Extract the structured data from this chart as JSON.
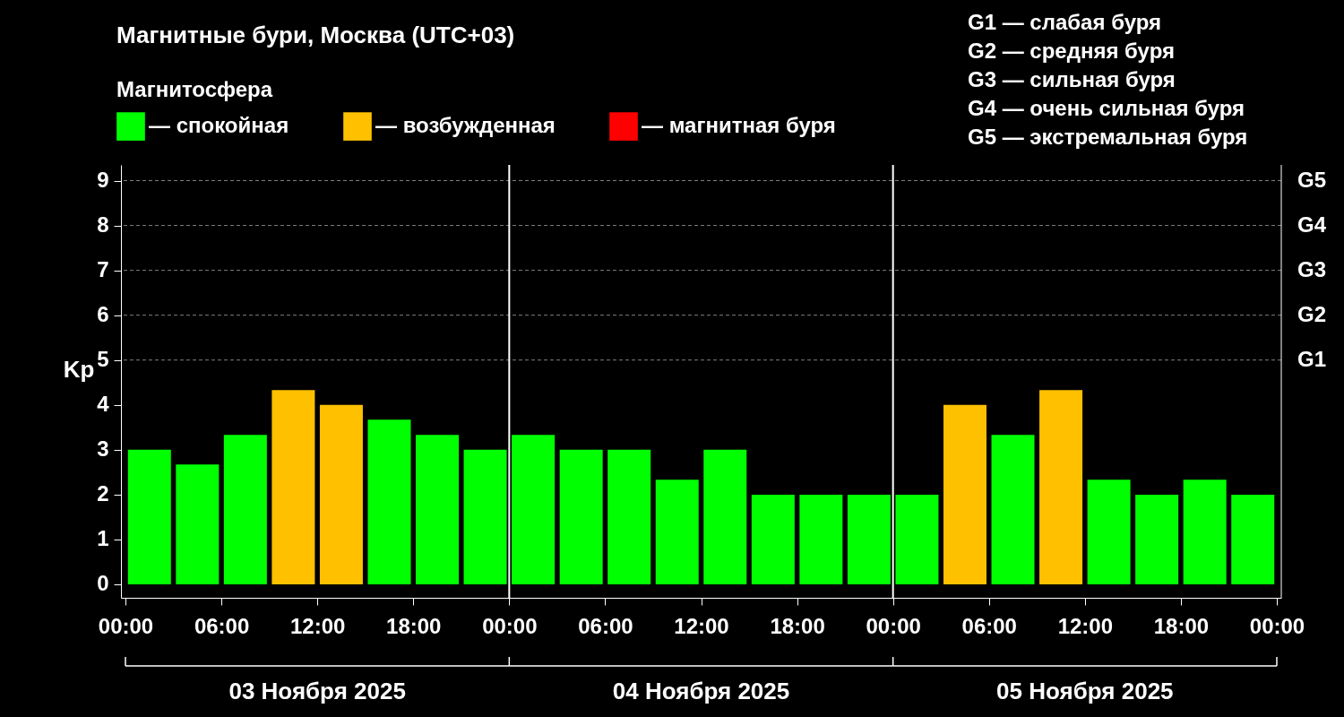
{
  "chart_data": {
    "type": "bar",
    "title": "Магнитные бури, Москва (UTC+03)",
    "legend_title": "Магнитосфера",
    "ylabel": "Kp",
    "x": [
      "2025-11-03T01:30",
      "2025-11-03T04:30",
      "2025-11-03T07:30",
      "2025-11-03T10:30",
      "2025-11-03T13:30",
      "2025-11-03T16:30",
      "2025-11-03T19:30",
      "2025-11-03T22:30",
      "2025-11-04T01:30",
      "2025-11-04T04:30",
      "2025-11-04T07:30",
      "2025-11-04T10:30",
      "2025-11-04T13:30",
      "2025-11-04T16:30",
      "2025-11-04T19:30",
      "2025-11-04T22:30",
      "2025-11-05T01:30",
      "2025-11-05T04:30",
      "2025-11-05T07:30",
      "2025-11-05T10:30",
      "2025-11-05T13:30",
      "2025-11-05T16:30",
      "2025-11-05T19:30",
      "2025-11-05T22:30"
    ],
    "series": [
      {
        "name": "— спокойная",
        "color": "#00ff00",
        "values": [
          3,
          2.67,
          3.33,
          null,
          null,
          3.67,
          3.33,
          3,
          3.33,
          3,
          3,
          2.33,
          3,
          2,
          2,
          2,
          2,
          null,
          3.33,
          null,
          2.33,
          2,
          2.33,
          2
        ]
      },
      {
        "name": "— возбужденная",
        "color": "#ffc000",
        "values": [
          null,
          null,
          null,
          4.33,
          4,
          null,
          null,
          null,
          null,
          null,
          null,
          null,
          null,
          null,
          null,
          null,
          null,
          4,
          null,
          4.33,
          null,
          null,
          null,
          null
        ]
      },
      {
        "name": "— магнитная буря",
        "color": "#ff0000",
        "values": [
          null,
          null,
          null,
          null,
          null,
          null,
          null,
          null,
          null,
          null,
          null,
          null,
          null,
          null,
          null,
          null,
          null,
          null,
          null,
          null,
          null,
          null,
          null,
          null
        ]
      }
    ],
    "xlim": [
      "2025-11-03T00:00",
      "2025-11-06T00:00"
    ],
    "xticks": [
      {
        "value": "2025-11-03T00:00",
        "label": "00:00"
      },
      {
        "value": "2025-11-03T06:00",
        "label": "06:00"
      },
      {
        "value": "2025-11-03T12:00",
        "label": "12:00"
      },
      {
        "value": "2025-11-03T18:00",
        "label": "18:00"
      },
      {
        "value": "2025-11-04T00:00",
        "label": "00:00"
      },
      {
        "value": "2025-11-04T06:00",
        "label": "06:00"
      },
      {
        "value": "2025-11-04T12:00",
        "label": "12:00"
      },
      {
        "value": "2025-11-04T18:00",
        "label": "18:00"
      },
      {
        "value": "2025-11-05T00:00",
        "label": "00:00"
      },
      {
        "value": "2025-11-05T06:00",
        "label": "06:00"
      },
      {
        "value": "2025-11-05T12:00",
        "label": "12:00"
      },
      {
        "value": "2025-11-05T18:00",
        "label": "18:00"
      },
      {
        "value": "2025-11-06T00:00",
        "label": "00:00"
      }
    ],
    "ylim": [
      -0.3,
      9.35
    ],
    "yticks": [
      0,
      1,
      2,
      3,
      4,
      5,
      6,
      7,
      8,
      9
    ],
    "ref_lines": [
      {
        "axis": "y",
        "value": 5,
        "label": "G1",
        "color": "#808080",
        "line_style": "dashed"
      },
      {
        "axis": "y",
        "value": 6,
        "label": "G2",
        "color": "#808080",
        "line_style": "dashed"
      },
      {
        "axis": "y",
        "value": 7,
        "label": "G3",
        "color": "#808080",
        "line_style": "dashed"
      },
      {
        "axis": "y",
        "value": 8,
        "label": "G4",
        "color": "#808080",
        "line_style": "dashed"
      },
      {
        "axis": "y",
        "value": 9,
        "label": "G5",
        "color": "#808080",
        "line_style": "dashed"
      },
      {
        "axis": "x",
        "value": "2025-11-04T00:00",
        "color": "#ffffff",
        "line_style": "solid"
      },
      {
        "axis": "x",
        "value": "2025-11-05T00:00",
        "color": "#ffffff",
        "line_style": "solid"
      }
    ],
    "annotations": [
      "03 Ноября 2025",
      "04 Ноября 2025",
      "05 Ноября 2025",
      "G1 — слабая буря",
      "G2 — средняя буря",
      "G3 — сильная буря",
      "G4 — очень сильная буря",
      "G5 — экстремальная буря"
    ],
    "legend": "top left"
  }
}
